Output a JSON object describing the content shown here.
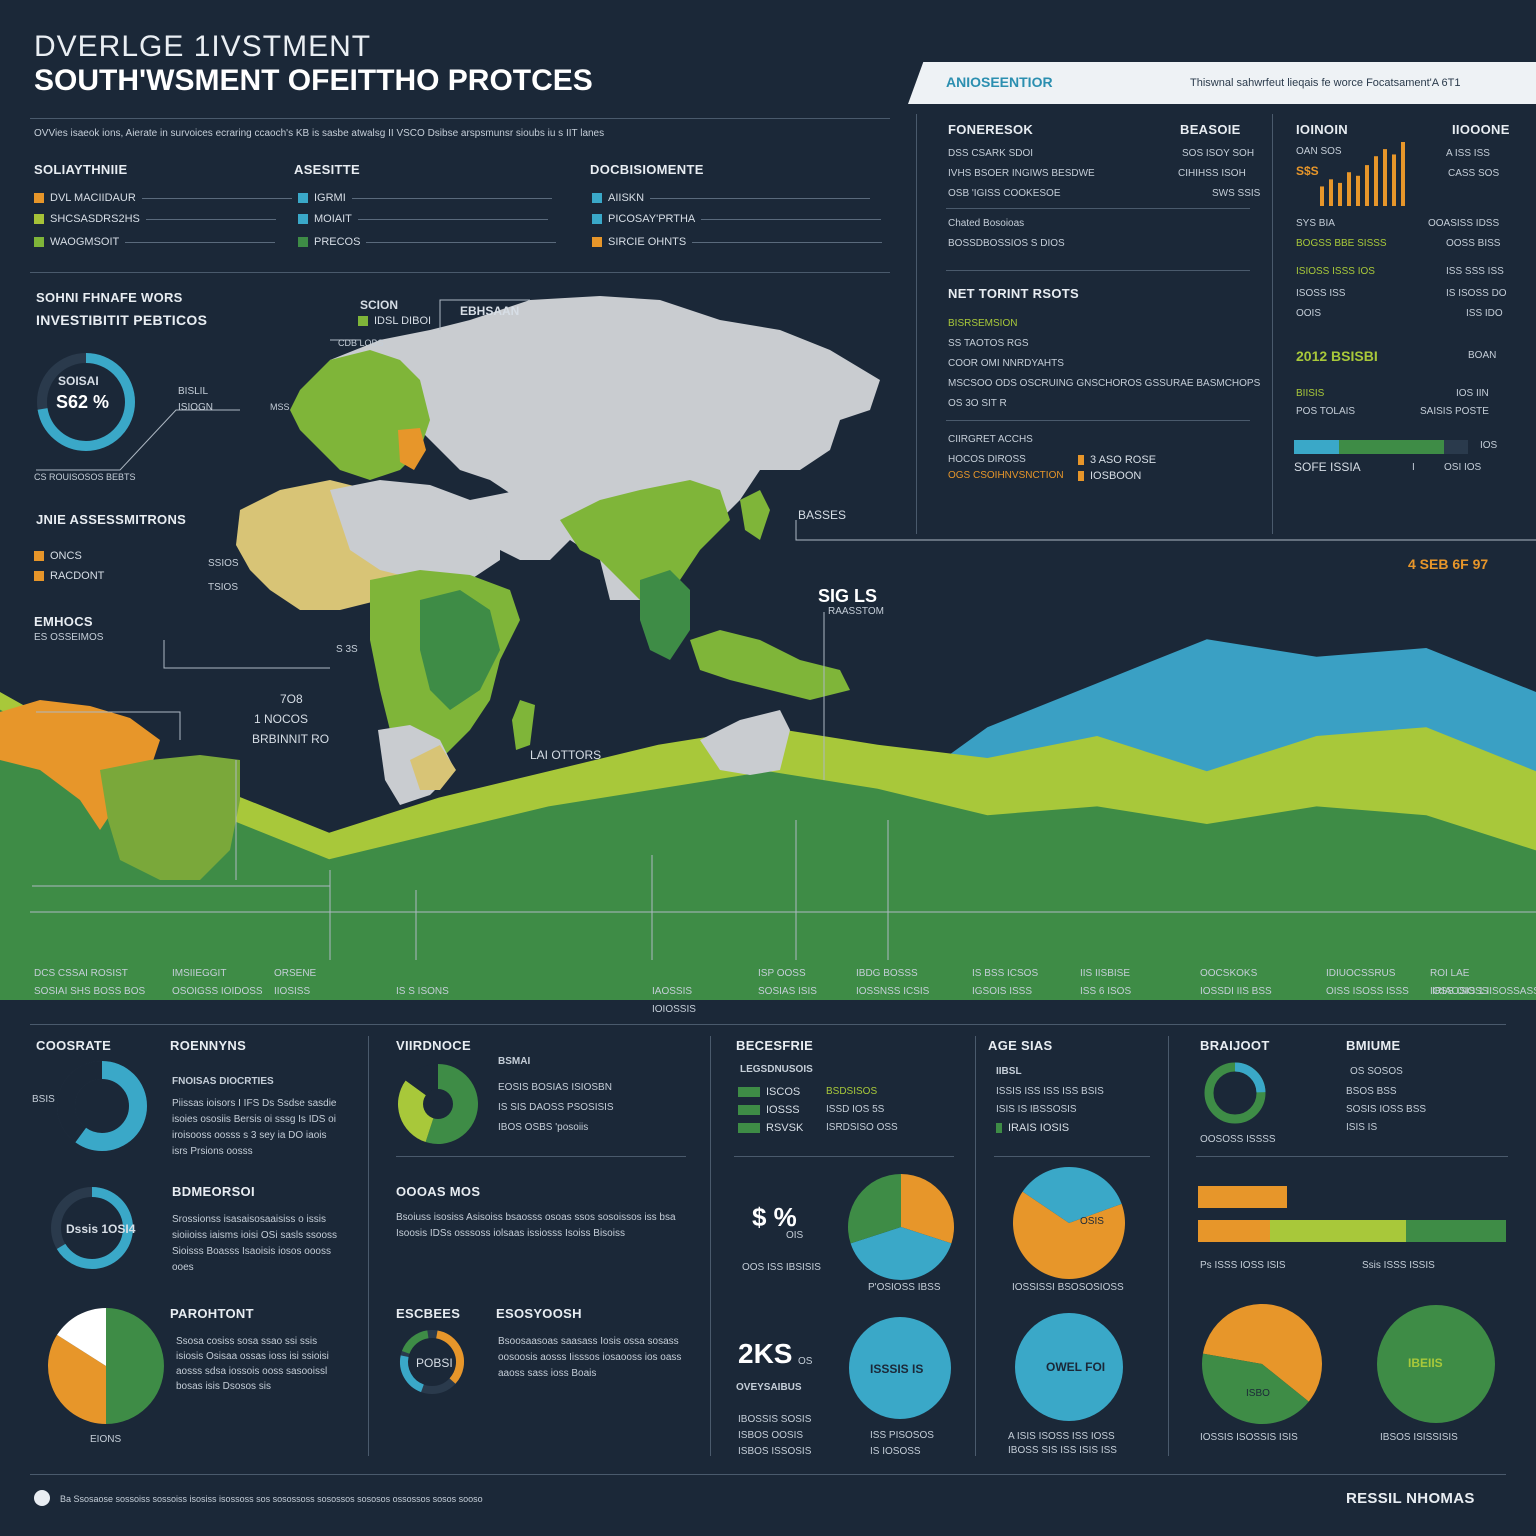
{
  "header": {
    "title_line1": "DVERLGE 1IVSTMENT",
    "title_line2": "SOUTH'WSMENT OFEITTHO PROTCES",
    "subtitle": "OVVies isaeok ions, Aierate in survoices ecraring ccaoch's KB is sasbe atwalsg II VSCO Dsibse arspsmunsr sioubs iu s IIT lanes",
    "banner_label": "ANIOSEENTIOR",
    "banner_note": "Thiswnal sahwrfeut lieqais fe worce Focatsament'A 6T1"
  },
  "legend_groups": [
    {
      "heading": "SOLIAYTHNIIE",
      "items": [
        {
          "label": "DVL MACIIDAUR",
          "color": "#e7962a"
        },
        {
          "label": "SHCSASDRS2HS",
          "color": "#a6c238"
        },
        {
          "label": "WAOGMSOIT",
          "color": "#7fb539"
        }
      ]
    },
    {
      "heading": "ASESITTE",
      "items": [
        {
          "label": "IGRMI",
          "color": "#3aa8c8"
        },
        {
          "label": "MOIAIT",
          "color": "#3aa8c8"
        },
        {
          "label": "PRECOS",
          "color": "#3e8c46"
        }
      ]
    },
    {
      "heading": "DOCBISIOMENTE",
      "items": [
        {
          "label": "AIISKN",
          "color": "#3aa8c8"
        },
        {
          "label": "PICOSAY'PRTHA",
          "color": "#3aa8c8"
        },
        {
          "label": "SIRCIE OHNTS",
          "color": "#e7962a"
        }
      ]
    }
  ],
  "left_panel": {
    "heading1": "SOHNI FHNAFE WORS",
    "heading2": "INVESTIBITIT PEBTICOS",
    "gauge_top": "SOISAI",
    "gauge_value": "S62 %",
    "gauge_side1": "BISLIL",
    "gauge_side2": "ISIOGN",
    "gauge_note": "CS ROUISOSOS BEBTS",
    "assess_heading": "JNIE ASSESSMITRONS",
    "assess_items": [
      {
        "label": "ONCS",
        "color": "#e7962a"
      },
      {
        "label": "RACDONT",
        "color": "#e7962a"
      }
    ],
    "embos_heading": "EMHOCS",
    "embos_sub": "ES OSSEIMOS",
    "map_tags": [
      "SSIOS",
      "TSIOS",
      "S 3S"
    ],
    "left_val1": "7O8",
    "left_val2": "1 NOCOS",
    "left_val3": "BRBINNIT RO"
  },
  "map_labels": {
    "scion": "SCION",
    "scion_sub": "IDSL DIBOI",
    "ebhsaan": "EBHSAAN",
    "cdb_tag": "CDB LOBS",
    "ms_tag": "MSS",
    "sigls": "SIG LS",
    "sigls_sub": "RAASSTOM",
    "basses": "BASSES",
    "la_otors": "LAI OTTORS"
  },
  "right_panel": {
    "col1_heading": "FONERESOK",
    "col2_heading": "BEASOIE",
    "rows": [
      {
        "label": "DSS CSARK SDOI",
        "value": "SOS ISOY SOH"
      },
      {
        "label": "IVHS BSOER INGIWS BESDWE",
        "value": "CIHIHSS ISOH"
      },
      {
        "label": "OSB 'IGISS COOKESOE",
        "value": "SWS SSIS"
      },
      {
        "label": "Chated Bosoioas",
        "value": ""
      },
      {
        "label": "BOSSDBOSSIOS S DIOS",
        "value": ""
      }
    ],
    "net_heading": "NET TORINT RSOTS",
    "net_rows": [
      "BISRSEMSION",
      "SS TAOTOS RGS",
      "COOR OMI NNRDYAHTS",
      "MSCSOO ODS OSCRUING GNSCHOROS GSSURAE BASMCHOPS",
      "OS 3O SIT R"
    ],
    "quick_heading": "CIIRGRET ACCHS",
    "quick_rows": [
      {
        "label": "HOCOS DIROSS",
        "tag": "3 ASO ROSE"
      },
      {
        "label": "OGS CSOIHNVSNCTION",
        "tag": "IOSBOON"
      }
    ]
  },
  "far_right": {
    "heading_left": "IOINOIN",
    "heading_right": "IIOOONE",
    "spark_label": "OAN SOS",
    "spark_sub": "S$S",
    "spark_values": [
      22,
      30,
      26,
      38,
      34,
      46,
      56,
      64,
      58,
      72
    ],
    "right_vals": [
      "A ISS ISS",
      "CASS SOS"
    ],
    "rows": [
      {
        "label": "SYS BIA",
        "value": "OOASISS IDSS"
      },
      {
        "label": "BOGSS BBE SISSS",
        "value": "OOSS BISS"
      },
      {
        "label": "ISIOSS ISSS IOS",
        "value": "ISS SSS ISS"
      },
      {
        "label": "ISOSS ISS",
        "value": "IS ISOSS DO"
      },
      {
        "label": "OOIS",
        "value": "ISS IDO"
      }
    ],
    "highlight": "2012 BSISBI",
    "highlight_right": "BOAN",
    "bar_head1": "BIISIS",
    "bar_head2": "POS TOLAIS",
    "bar_right1": "IOS IIN",
    "bar_right2": "SAISIS POSTE",
    "bar_value": 0.86,
    "bar_left": "SOFE ISSIA",
    "bar_mid": "I",
    "bar_right": "OSI IOS",
    "bar_end": "IOS",
    "area_label": "4 SEB 6F 97"
  },
  "area_chart_labels": [
    {
      "line1": "DCS CSSAI ROSIST",
      "line2": "SOSIAI SHS BOSS BOS"
    },
    {
      "line1": "IMSIIEGGIT",
      "line2": "OSOIGSS IOIDOSS"
    },
    {
      "line1": "ORSENE",
      "line2": "IIOSISS"
    },
    {
      "line1": "IS S ISONS",
      "line2": ""
    },
    {
      "line1": "IAOSSIS",
      "line2": "IOIOSSIS"
    },
    {
      "line1": "ISP OOSS",
      "line2": "SOSIAS ISIS"
    },
    {
      "line1": "IBDG BOSSS",
      "line2": "IOSSNSS ICSIS"
    },
    {
      "line1": "IS BSS ICSOS",
      "line2": "IGSOIS ISSS"
    },
    {
      "line1": "IIS IISBISE",
      "line2": "ISS 6 ISOS"
    },
    {
      "line1": "OOCSKOKS",
      "line2": "IOSSDI IIS BSS"
    },
    {
      "line1": "IDIUOCSSRUS",
      "line2": "OISS ISOSS ISSS"
    },
    {
      "line1": "ROI LAE",
      "line2": "IOSS OIOSS"
    },
    {
      "line1": "IRIAOSIS 1",
      "line2": "IISOSSASS"
    }
  ],
  "chart_data": [
    {
      "type": "area",
      "x": [
        0,
        1,
        2,
        3,
        4,
        5,
        6,
        7,
        8,
        9,
        10,
        11,
        12,
        13,
        14
      ],
      "series": [
        {
          "name": "",
          "color": "#3aa0c4",
          "values": [
            0,
            0,
            0,
            0,
            0,
            0,
            8,
            26,
            44,
            62,
            72,
            82,
            78,
            80,
            70
          ]
        },
        {
          "name": "",
          "color": "#a8c83a",
          "values": [
            70,
            56,
            48,
            38,
            46,
            52,
            58,
            62,
            58,
            55,
            60,
            52,
            60,
            62,
            52
          ]
        },
        {
          "name": "",
          "color": "#3e8c46",
          "values": [
            66,
            52,
            42,
            32,
            38,
            44,
            48,
            52,
            48,
            42,
            44,
            40,
            44,
            42,
            34
          ]
        }
      ],
      "ylim": [
        0,
        100
      ],
      "grid": false
    },
    {
      "type": "bar",
      "categories": [
        "1",
        "2",
        "3",
        "4",
        "5",
        "6",
        "7",
        "8",
        "9",
        "10"
      ],
      "values": [
        22,
        30,
        26,
        38,
        34,
        46,
        56,
        64,
        58,
        72
      ]
    },
    {
      "type": "pie",
      "labels": [
        "",
        ""
      ],
      "values": [
        60,
        40
      ],
      "colors": [
        "#3aa8c8",
        "#1b2838"
      ],
      "center": ""
    },
    {
      "type": "pie",
      "labels": [
        "",
        "",
        ""
      ],
      "values": [
        55,
        30,
        15
      ],
      "colors": [
        "#3e8c46",
        "#a8c83a",
        "#1b2838"
      ],
      "center": ""
    },
    {
      "type": "pie",
      "labels": [
        "",
        "",
        ""
      ],
      "values": [
        30,
        40,
        30
      ],
      "colors": [
        "#e7962a",
        "#3aa8c8",
        "#3e8c46"
      ]
    },
    {
      "type": "pie",
      "labels": [
        "",
        ""
      ],
      "values": [
        65,
        35
      ],
      "colors": [
        "#e7962a",
        "#3aa8c8"
      ]
    },
    {
      "type": "pie",
      "labels": [
        "",
        ""
      ],
      "values": [
        58,
        42
      ],
      "colors": [
        "#e7962a",
        "#3e8c46"
      ]
    }
  ],
  "bottom": {
    "col1": {
      "heading_a": "COOSRATE",
      "heading_b": "ROENNYNS",
      "sub": "FNOISAS DIOCRTIES",
      "body": "Piissas ioisors I IFS Ds Ssdse sasdie isoies ososiis Bersis oi sssg Is IDS oi iroisooss oosss s 3 sey ia DO iaois isrs Prsions oosss",
      "ring1_label": "BSIS",
      "ring2_label": "Dssis 1OSI4",
      "h2": "BDMEORSOI",
      "body2": "Srossionss isasaisosaaisiss o issis sioiioiss iaisms ioisi OSi sasls ssooss Sioisss Boasss Isaoisis iosos oooss ooes",
      "h3": "PAROHTONT",
      "body3": "Ssosa cosiss sosa ssao ssi ssis isiosis Osisaa ossas ioss isi ssioisi aosss sdsa iossois ooss sasooissl bosas isis Dsosos sis",
      "pie_label": "EIONS"
    },
    "col2": {
      "heading": "VIIRDNOCE",
      "sub": "BSMAI",
      "rows": [
        "EOSIS BOSIAS ISIOSBN",
        "IS SIS   DAOSS PSOSISIS",
        "IBOS OSBS   'posoiis"
      ],
      "h2": "OOOAS MOS",
      "body2": "Bsoiuss isosiss Asisoiss bsaosss osoas ssos sosoissos iss bsa Isoosis IDSs osssoss iolsaas issiosss Isoiss Bisoiss",
      "h3a": "ESCBEES",
      "h3b": "ESOSYOOSH",
      "gauge_label": "POBSI",
      "body3": "Bsoosaasoas saasass Iosis ossa sosass oosoosis aosss Iisssos iosaooss ios oass aaoss sass ioss Boais"
    },
    "col3": {
      "heading": "BECESFRIE",
      "sub": "LEGSDNUSOIS",
      "rows": [
        {
          "a": "ISCOS",
          "b": "BSDSISOS"
        },
        {
          "a": "IOSSS",
          "b": "ISSD IOS 5S"
        },
        {
          "a": "RSVSK",
          "b": "ISRDSISO OSS"
        }
      ],
      "pct_a": "$ %",
      "pct_a_sub": "OIS",
      "pct_a_note": "OOS ISS IBSISIS",
      "pie_note": "P'OSIOSS IBSS",
      "big": "2KS",
      "big_sub": "OS",
      "big_label": "OVEYSAIBUS",
      "circle_label": "ISSSIS IS",
      "note_a": "IBOSSIS SOSIS",
      "note_b": "ISBOS OOSIS",
      "note_c": "ISBOS ISSOSIS",
      "note_d": "ISS PISOSOS",
      "note_e": "IS IOSOSS"
    },
    "col4": {
      "heading": "AGE SIAS",
      "sub": "IIBSL",
      "rows": [
        "ISSIS ISS ISS ISS BSIS",
        "ISIS IS IBSSOSIS",
        "IRAIS IOSIS"
      ],
      "pie_label": "OSIS",
      "pie_note": "IOSSISSI BSOSOSIOSS",
      "circle_label": "OWEL FOI",
      "note": "A ISIS ISOSS ISS IOSS IBOSS SIS ISS ISIS ISS"
    },
    "col5": {
      "heading_a": "BRAIJOOT",
      "heading_b": "BMIUME",
      "rows": [
        "OS SOSOS",
        "BSOS BSS",
        "SOSIS IOSS BSS",
        "ISIS IS"
      ],
      "donut_note": "OOSOSS ISSSS",
      "bars": [
        {
          "value": 0.16,
          "color": "#e7962a"
        },
        {
          "value": 0.18,
          "color": "#e7962a"
        },
        {
          "value": 0.22,
          "color": "#a8c83a"
        },
        {
          "value": 0.22,
          "color": "#3e8c46"
        }
      ],
      "bar_note_a": "Ps ISSS IOSS ISIS",
      "bar_note_b": "Ssis ISSS ISSIS",
      "pie_label": "ISBO",
      "circle_label": "IBEIIS",
      "note_a": "IOSSIS ISOSSIS ISIS",
      "note_b": "IBSOS ISISSISIS"
    }
  },
  "footer": {
    "note": "Ba Ssosaose sossoiss sossoiss isosiss isossoss sos sosossoss sosossos sososos ossossos sosos sooso",
    "brand": "RESSIL NHOMAS"
  },
  "colors": {
    "background": "#1b2838",
    "orange": "#e7962a",
    "lime": "#a8c83a",
    "green": "#3e8c46",
    "teal": "#3aa8c8",
    "land": "#c9ccd0"
  }
}
